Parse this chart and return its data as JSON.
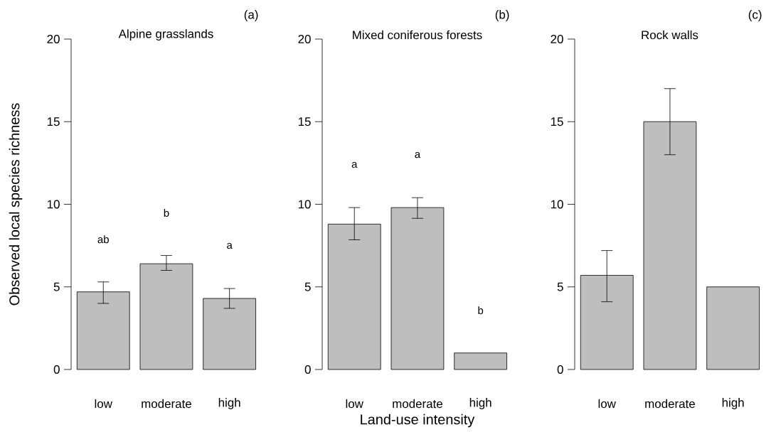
{
  "chart_data": [
    {
      "type": "bar",
      "title": "Alpine grasslands",
      "ylabel": "Observed local species richness",
      "categories": [
        "low",
        "moderate",
        "high"
      ],
      "values": [
        4.7,
        6.4,
        4.3
      ],
      "errors": [
        [
          4.0,
          5.3
        ],
        [
          6.0,
          6.9
        ],
        [
          3.7,
          4.9
        ]
      ],
      "color": "#bebebe",
      "ylim": [
        0,
        20
      ],
      "yticks": [
        0,
        5,
        10,
        15,
        20
      ],
      "annotations": [
        "(a)",
        "ab",
        "b",
        "a"
      ]
    },
    {
      "type": "bar",
      "title": "Mixed coniferous forests",
      "xlabel": "Land-use intensity",
      "categories": [
        "low",
        "moderate",
        "high"
      ],
      "values": [
        8.8,
        9.8,
        1
      ],
      "errors": [
        [
          7.85,
          9.8
        ],
        [
          9.15,
          10.4
        ],
        null
      ],
      "color": "#bebebe",
      "ylim": [
        0,
        20
      ],
      "yticks": [
        0,
        5,
        10,
        15,
        20
      ],
      "annotations": [
        "(b)",
        "a",
        "a",
        "b"
      ]
    },
    {
      "type": "bar",
      "title": "Rock walls",
      "categories": [
        "low",
        "moderate",
        "high"
      ],
      "values": [
        5.7,
        15,
        5
      ],
      "errors": [
        [
          4.1,
          7.2
        ],
        [
          13,
          17
        ],
        null
      ],
      "color": "#bebebe",
      "ylim": [
        0,
        20
      ],
      "yticks": [
        0,
        5,
        10,
        15,
        20
      ],
      "annotations": [
        "(c)"
      ]
    }
  ]
}
